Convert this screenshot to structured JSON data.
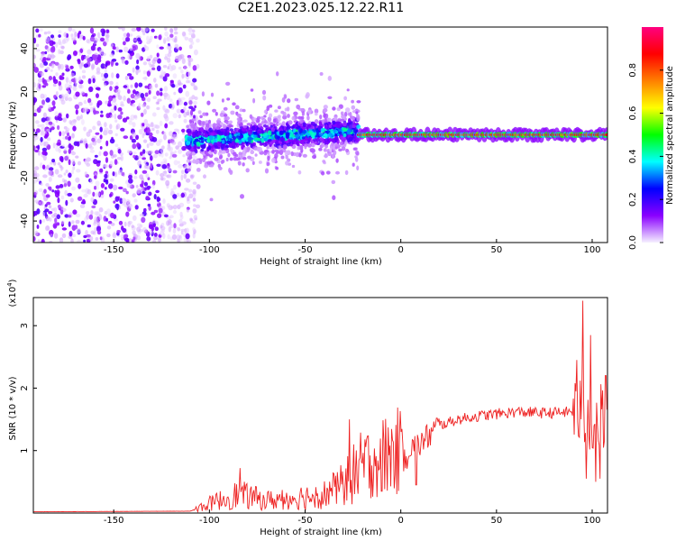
{
  "title": "C2E1.2023.025.12.22.R11",
  "chart_data": [
    {
      "type": "heatmap",
      "xlabel": "Height of straight line (km)",
      "ylabel": "Frequency (Hz)",
      "xlim": [
        -192,
        108
      ],
      "ylim": [
        -50,
        50
      ],
      "x_ticks": [
        -150,
        -100,
        -50,
        0,
        50,
        100
      ],
      "y_ticks": [
        -40,
        -20,
        0,
        20,
        40
      ],
      "colorbar": {
        "label": "Normalized spectral amplitude",
        "range": [
          0,
          1
        ],
        "ticks": [
          0.0,
          0.2,
          0.4,
          0.6,
          0.8
        ],
        "tick_labels": [
          "0.0",
          "0.2",
          "0.4",
          "0.6",
          "0.8"
        ],
        "colormap": [
          "#f5f0ff",
          "#8a00ff",
          "#0000ff",
          "#00ffff",
          "#00ff00",
          "#ffff00",
          "#ff8000",
          "#ff0000",
          "#ff0080"
        ]
      },
      "regions": [
        {
          "x_range": [
            -192,
            -112
          ],
          "y_range": [
            -50,
            50
          ],
          "amplitude": "low-to-moderate scattered"
        },
        {
          "x_range": [
            -112,
            -22
          ],
          "y_center_start": -3,
          "y_center_end": 2,
          "amplitude": "moderate-to-high band"
        },
        {
          "x_range": [
            -22,
            108
          ],
          "y_center": 0,
          "amplitude": "high narrow band"
        }
      ],
      "grid": false
    },
    {
      "type": "line",
      "xlabel": "Height of straight line (km)",
      "ylabel": "SNR (10 * v/v)",
      "y_scale_label": "(x10",
      "y_scale_exp": "4",
      "y_scale_suffix": ")",
      "xlim": [
        -192,
        108
      ],
      "ylim": [
        0,
        3.45
      ],
      "x_ticks": [
        -150,
        -100,
        -50,
        0,
        50,
        100
      ],
      "y_ticks": [
        1,
        2,
        3
      ],
      "color": "#ee2222",
      "control_points": [
        {
          "x": -192,
          "y": 0.02
        },
        {
          "x": -110,
          "y": 0.03
        },
        {
          "x": -100,
          "y": 0.15
        },
        {
          "x": -85,
          "y": 0.3
        },
        {
          "x": -70,
          "y": 0.2
        },
        {
          "x": -55,
          "y": 0.25
        },
        {
          "x": -40,
          "y": 0.3
        },
        {
          "x": -30,
          "y": 0.45
        },
        {
          "x": -22,
          "y": 0.7
        },
        {
          "x": -15,
          "y": 0.85
        },
        {
          "x": 0,
          "y": 1.0
        },
        {
          "x": 10,
          "y": 1.1
        },
        {
          "x": 20,
          "y": 1.4
        },
        {
          "x": 30,
          "y": 1.5
        },
        {
          "x": 40,
          "y": 1.55
        },
        {
          "x": 60,
          "y": 1.62
        },
        {
          "x": 75,
          "y": 1.6
        },
        {
          "x": 90,
          "y": 1.62
        },
        {
          "x": 100,
          "y": 1.5
        },
        {
          "x": 108,
          "y": 1.5
        }
      ],
      "peaks": [
        {
          "x": -84,
          "y": 0.72
        },
        {
          "x": -27,
          "y": 1.5
        },
        {
          "x": -10,
          "y": 1.25
        },
        {
          "x": 0,
          "y": 1.3
        },
        {
          "x": 95,
          "y": 3.4
        },
        {
          "x": 92,
          "y": 2.45
        },
        {
          "x": 99,
          "y": 2.85
        },
        {
          "x": 104,
          "y": 2.4
        },
        {
          "x": 107,
          "y": 2.2
        }
      ],
      "troughs": [
        {
          "x": -10,
          "y": 0.35
        },
        {
          "x": 8,
          "y": 0.45
        },
        {
          "x": 97,
          "y": 0.55
        },
        {
          "x": 102,
          "y": 0.5
        },
        {
          "x": 104,
          "y": 0.55
        }
      ],
      "grid": false
    }
  ]
}
